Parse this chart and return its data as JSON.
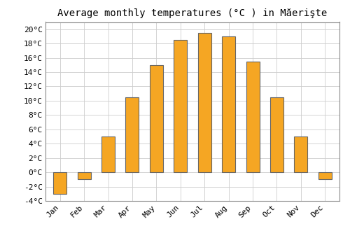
{
  "title": "Average monthly temperatures (°C ) in Măerişte",
  "months": [
    "Jan",
    "Feb",
    "Mar",
    "Apr",
    "May",
    "Jun",
    "Jul",
    "Aug",
    "Sep",
    "Oct",
    "Nov",
    "Dec"
  ],
  "temperatures": [
    -3,
    -1,
    5,
    10.5,
    15,
    18.5,
    19.5,
    19,
    15.5,
    10.5,
    5,
    -1
  ],
  "bar_color": "#F5A623",
  "bar_edge_color": "#666666",
  "ylim": [
    -4,
    21
  ],
  "yticks": [
    -4,
    -2,
    0,
    2,
    4,
    6,
    8,
    10,
    12,
    14,
    16,
    18,
    20
  ],
  "grid_color": "#cccccc",
  "bg_color": "#ffffff",
  "title_fontsize": 10,
  "tick_fontsize": 8,
  "bar_width": 0.55
}
